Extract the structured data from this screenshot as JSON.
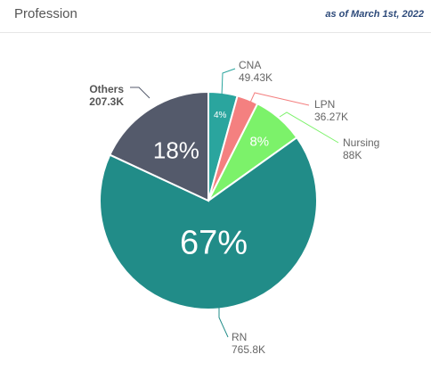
{
  "header": {
    "title": "Profession",
    "as_of": "as of March 1st, 2022"
  },
  "chart_data": {
    "type": "pie",
    "title": "Profession",
    "slices": [
      {
        "name": "CNA",
        "value_label": "49.43K",
        "value": 49.43,
        "percent_label": "4%",
        "color": "#2aa59e"
      },
      {
        "name": "LPN",
        "value_label": "36.27K",
        "value": 36.27,
        "percent_label": "",
        "color": "#f48080"
      },
      {
        "name": "Nursing",
        "value_label": "88K",
        "value": 88,
        "percent_label": "8%",
        "color": "#7cf26a"
      },
      {
        "name": "RN",
        "value_label": "765.8K",
        "value": 765.8,
        "percent_label": "67%",
        "color": "#218c88"
      },
      {
        "name": "Others",
        "value_label": "207.3K",
        "value": 207.3,
        "percent_label": "18%",
        "color": "#545a6b"
      }
    ]
  }
}
